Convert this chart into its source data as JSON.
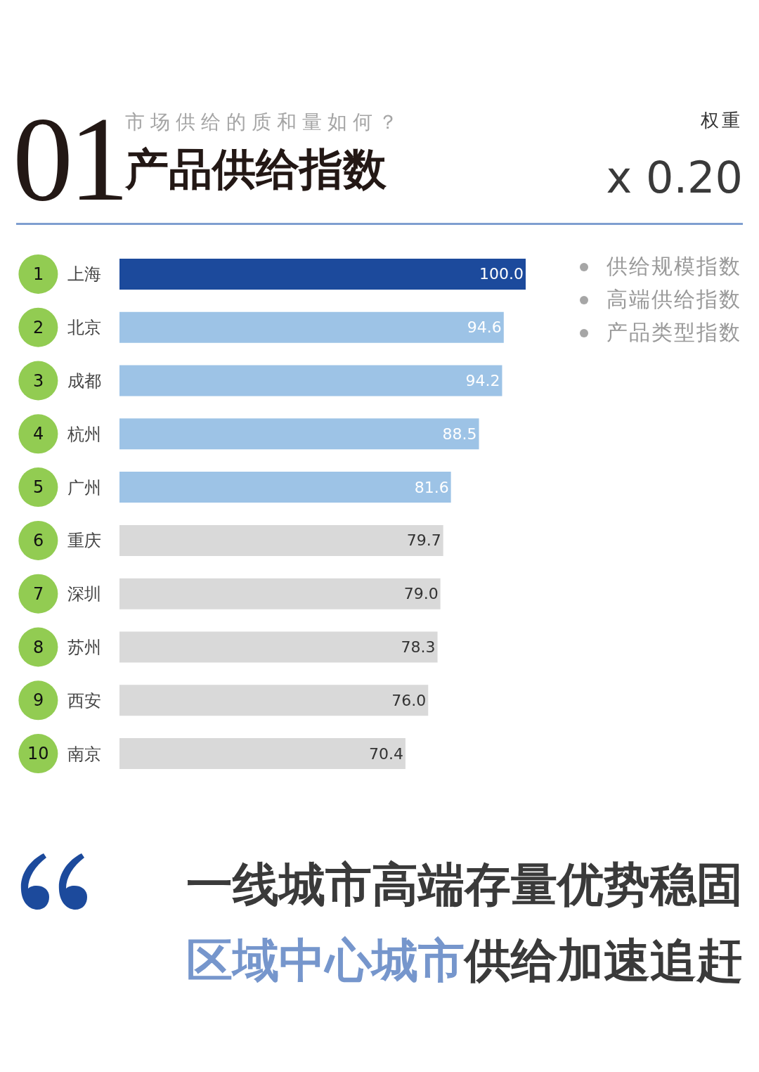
{
  "chart_data": {
    "type": "bar",
    "orientation": "horizontal",
    "title": "产品供给指数",
    "subtitle": "市场供给的质和量如何？",
    "categories": [
      "上海",
      "北京",
      "成都",
      "杭州",
      "广州",
      "重庆",
      "深圳",
      "苏州",
      "西安",
      "南京"
    ],
    "values": [
      100.0,
      94.6,
      94.2,
      88.5,
      81.6,
      79.7,
      79.0,
      78.3,
      76.0,
      70.4
    ],
    "value_labels": [
      "100.0",
      "94.6",
      "94.2",
      "88.5",
      "81.6",
      "79.7",
      "79.0",
      "78.3",
      "76.0",
      "70.4"
    ],
    "colors": [
      "#1c4a9c",
      "#9dc3e6",
      "#9dc3e6",
      "#9dc3e6",
      "#9dc3e6",
      "#d9d9d9",
      "#d9d9d9",
      "#d9d9d9",
      "#d9d9d9",
      "#d9d9d9"
    ],
    "xlim": [
      0,
      100
    ],
    "tick_labels": "y",
    "annotations": [
      "1",
      "2",
      "3",
      "4",
      "5",
      "6",
      "7",
      "8",
      "9",
      "10",
      "01",
      "权重",
      "x 0.20",
      "供给规模指数",
      "高端供给指数",
      "产品类型指数",
      "一线城市高端存量优势稳固",
      "区域中心城市供给加速追赶"
    ]
  }
}
